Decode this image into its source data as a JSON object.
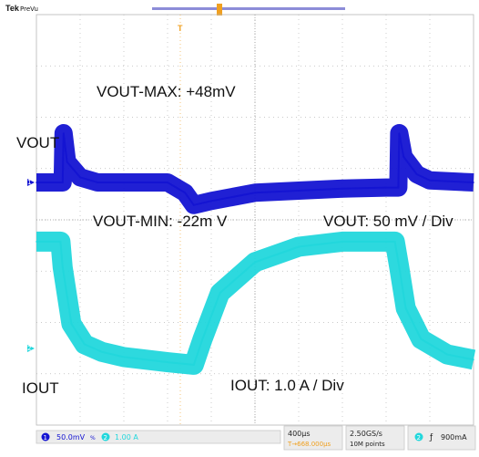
{
  "header": {
    "brand": "Tek",
    "mode": "PreVu"
  },
  "annotations": {
    "vout_max": "VOUT-MAX: +48mV",
    "vout_label": "VOUT",
    "vout_min": "VOUT-MIN: -22m V",
    "vout_scale": "VOUT: 50 mV / Div",
    "iout_label": "IOUT",
    "iout_scale": "IOUT: 1.0 A / Div"
  },
  "markers": {
    "ch1": "1",
    "ch2": "2",
    "trigger_top": "T"
  },
  "statusbar": {
    "ch1_badge": "1",
    "ch1_scale": "50.0mV",
    "ch1_suffix": "%",
    "ch2_badge": "2",
    "ch2_scale": "1.00 A",
    "timebase": "400µs",
    "trig_pos": "T→668.000µs",
    "sample_rate": "2.50GS/s",
    "record_len": "10M points",
    "trig_ch": "2",
    "trig_slope": "ƒ",
    "trig_level": "900mA"
  },
  "colors": {
    "ch1": "#1414d2",
    "ch2": "#22d7dc",
    "trigger": "#f0a020",
    "grid": "#b8b8b8"
  },
  "chart_data": {
    "type": "line",
    "title": "",
    "xlabel": "",
    "ylabel": "",
    "x_divisions": 10,
    "y_divisions": 8,
    "grid": true,
    "x_unit_per_div": "400µs",
    "series": [
      {
        "name": "VOUT",
        "unit_per_div": "50 mV",
        "x": [
          0,
          0.6,
          0.62,
          0.7,
          1.0,
          1.4,
          2.0,
          3.0,
          3.4,
          3.6,
          4.0,
          5.0,
          6.0,
          7.0,
          8.0,
          8.28,
          8.3,
          8.4,
          8.7,
          9.0,
          10.0
        ],
        "values": [
          0,
          0,
          48,
          20,
          5,
          0,
          0,
          0,
          -10,
          -22,
          -18,
          -10,
          -8,
          -6,
          -5,
          -5,
          48,
          25,
          8,
          2,
          0
        ]
      },
      {
        "name": "IOUT",
        "unit_per_div": "1.0 A",
        "x": [
          0,
          0.55,
          0.6,
          0.8,
          1.1,
          1.5,
          2.0,
          3.0,
          3.6,
          3.8,
          4.2,
          5.0,
          6.0,
          7.0,
          8.0,
          8.2,
          8.3,
          8.45,
          8.8,
          9.4,
          10.0
        ],
        "values": [
          2.9,
          2.9,
          2.4,
          1.3,
          0.9,
          0.75,
          0.65,
          0.55,
          0.5,
          1.0,
          1.9,
          2.5,
          2.8,
          2.9,
          2.9,
          2.9,
          2.4,
          1.6,
          1.0,
          0.7,
          0.6
        ]
      }
    ]
  }
}
